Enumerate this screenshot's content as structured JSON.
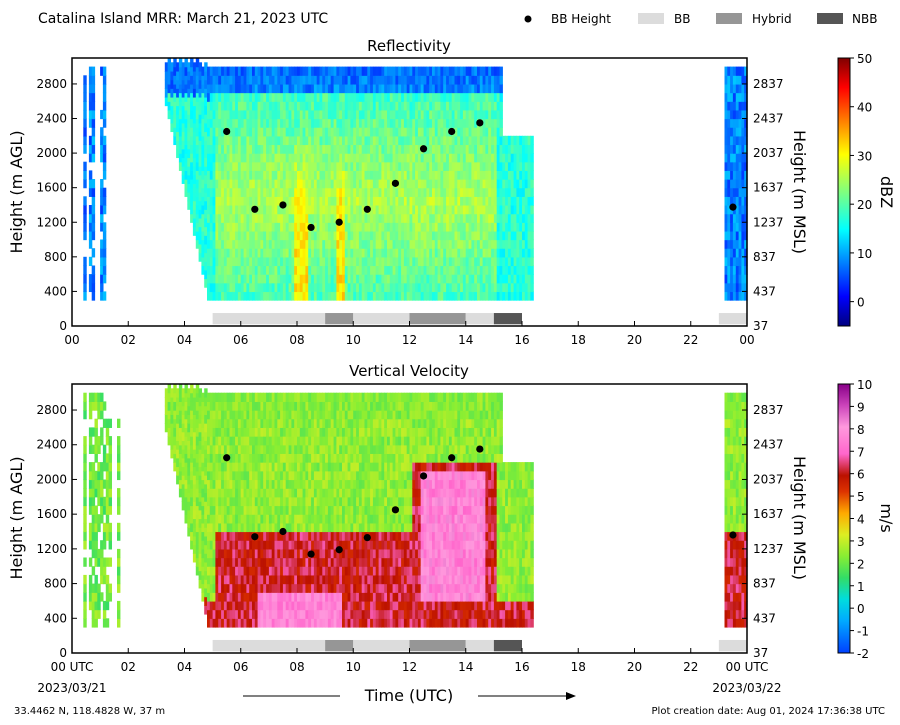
{
  "header": {
    "title": "Catalina Island MRR:  March 21, 2023 UTC",
    "legend": [
      {
        "label": "BB Height",
        "symbol": "dot",
        "color": "#000000"
      },
      {
        "label": "BB",
        "symbol": "box",
        "color": "#dcdcdc"
      },
      {
        "label": "Hybrid",
        "symbol": "box",
        "color": "#969696"
      },
      {
        "label": "NBB",
        "symbol": "box",
        "color": "#555555"
      }
    ]
  },
  "footer": {
    "location": "33.4462 N, 118.4828 W, 37 m",
    "creation": "Plot creation date: Aug 01, 2024 17:36:38 UTC"
  },
  "chart_data": [
    {
      "type": "heatmap",
      "title": "Reflectivity",
      "ylabel": "Height (m AGL)",
      "ylabel_right": "Height (m MSL)",
      "xlabel": "",
      "x_ticks": [
        "00",
        "02",
        "04",
        "06",
        "08",
        "10",
        "12",
        "14",
        "16",
        "18",
        "20",
        "22",
        "00"
      ],
      "y_ticks": [
        0,
        400,
        800,
        1200,
        1600,
        2000,
        2400,
        2800
      ],
      "y_ticks_right": [
        "37",
        "437",
        "837",
        "1237",
        "1637",
        "2037",
        "2437",
        "2837"
      ],
      "xlim": [
        0,
        24
      ],
      "ylim": [
        0,
        3100
      ],
      "colorbar": {
        "label": "dBZ",
        "range": [
          -5,
          50
        ],
        "ticks": [
          0,
          10,
          20,
          30,
          40,
          50
        ],
        "colormap": "jet"
      },
      "bb_height": {
        "label": "BB Height",
        "points": [
          {
            "t": 5.5,
            "h": 2250
          },
          {
            "t": 6.5,
            "h": 1350
          },
          {
            "t": 7.5,
            "h": 1400
          },
          {
            "t": 8.5,
            "h": 1140
          },
          {
            "t": 9.5,
            "h": 1200
          },
          {
            "t": 10.5,
            "h": 1350
          },
          {
            "t": 11.5,
            "h": 1650
          },
          {
            "t": 12.5,
            "h": 2050
          },
          {
            "t": 13.5,
            "h": 2250
          },
          {
            "t": 14.5,
            "h": 2350
          },
          {
            "t": 23.5,
            "h": 1375
          }
        ]
      },
      "bb_class": [
        {
          "start": 5.0,
          "end": 9.0,
          "class": "BB"
        },
        {
          "start": 9.0,
          "end": 10.0,
          "class": "Hybrid"
        },
        {
          "start": 10.0,
          "end": 12.0,
          "class": "BB"
        },
        {
          "start": 12.0,
          "end": 14.0,
          "class": "Hybrid"
        },
        {
          "start": 14.0,
          "end": 15.0,
          "class": "BB"
        },
        {
          "start": 15.0,
          "end": 16.0,
          "class": "NBB"
        },
        {
          "start": 23.0,
          "end": 24.0,
          "class": "BB"
        }
      ]
    },
    {
      "type": "heatmap",
      "title": "Vertical Velocity",
      "ylabel": "Height (m AGL)",
      "ylabel_right": "Height (m MSL)",
      "xlabel": "Time (UTC)",
      "x_ticks": [
        "00 UTC",
        "02",
        "04",
        "06",
        "08",
        "10",
        "12",
        "14",
        "16",
        "18",
        "20",
        "22",
        "00 UTC"
      ],
      "x_dates": [
        "2023/03/21",
        "2023/03/22"
      ],
      "y_ticks": [
        0,
        400,
        800,
        1200,
        1600,
        2000,
        2400,
        2800
      ],
      "y_ticks_right": [
        "37",
        "437",
        "837",
        "1237",
        "1637",
        "2037",
        "2437",
        "2837"
      ],
      "xlim": [
        0,
        24
      ],
      "ylim": [
        0,
        3100
      ],
      "colorbar": {
        "label": "m/s",
        "range": [
          -2,
          10
        ],
        "ticks": [
          -2,
          -1,
          0,
          1,
          2,
          3,
          4,
          5,
          6,
          7,
          8,
          9,
          10
        ],
        "colormap": "velocity"
      },
      "bb_height": {
        "label": "BB Height",
        "points": [
          {
            "t": 5.5,
            "h": 2250
          },
          {
            "t": 6.5,
            "h": 1340
          },
          {
            "t": 7.5,
            "h": 1400
          },
          {
            "t": 8.5,
            "h": 1140
          },
          {
            "t": 9.5,
            "h": 1190
          },
          {
            "t": 10.5,
            "h": 1330
          },
          {
            "t": 11.5,
            "h": 1650
          },
          {
            "t": 12.5,
            "h": 2040
          },
          {
            "t": 13.5,
            "h": 2250
          },
          {
            "t": 14.5,
            "h": 2350
          },
          {
            "t": 23.5,
            "h": 1360
          }
        ]
      },
      "bb_class": [
        {
          "start": 5.0,
          "end": 9.0,
          "class": "BB"
        },
        {
          "start": 9.0,
          "end": 10.0,
          "class": "Hybrid"
        },
        {
          "start": 10.0,
          "end": 12.0,
          "class": "BB"
        },
        {
          "start": 12.0,
          "end": 14.0,
          "class": "Hybrid"
        },
        {
          "start": 14.0,
          "end": 15.0,
          "class": "BB"
        },
        {
          "start": 15.0,
          "end": 16.0,
          "class": "NBB"
        },
        {
          "start": 23.0,
          "end": 24.0,
          "class": "BB"
        }
      ]
    }
  ]
}
